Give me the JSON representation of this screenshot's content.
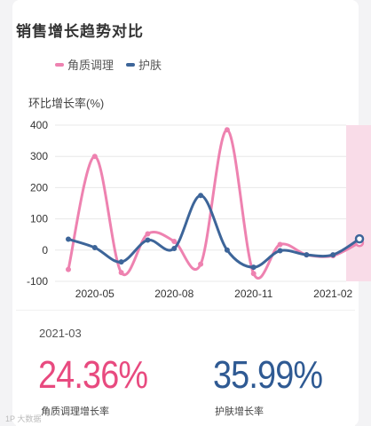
{
  "title": "销售增长趋势对比",
  "legend": [
    {
      "label": "角质调理",
      "color": "#ee82b0"
    },
    {
      "label": "护肤",
      "color": "#3d6599"
    }
  ],
  "ylabel": "环比增长率(%)",
  "summary": {
    "date": "2021-03",
    "value1": "24.36%",
    "label1": "角质调理增长率",
    "value2": "35.99%",
    "label2": "护肤增长率"
  },
  "watermark": "1P 大数据",
  "chart_data": {
    "type": "line",
    "title": "销售增长趋势对比",
    "ylabel": "环比增长率(%)",
    "xlabel": "",
    "x": [
      "2020-04",
      "2020-05",
      "2020-06",
      "2020-07",
      "2020-08",
      "2020-09",
      "2020-10",
      "2020-11",
      "2020-12",
      "2021-01",
      "2021-02",
      "2021-03"
    ],
    "xticks": [
      "2020-05",
      "2020-08",
      "2020-11",
      "2021-02"
    ],
    "yticks": [
      -100,
      0,
      100,
      200,
      300,
      400
    ],
    "ylim": [
      -100,
      400
    ],
    "grid": true,
    "legend_position": "top",
    "highlight_x": "2021-03",
    "series": [
      {
        "name": "角质调理",
        "color": "#ee82b0",
        "values": [
          -62,
          300,
          -72,
          52,
          28,
          -45,
          385,
          -75,
          18,
          -15,
          -18,
          24.36
        ]
      },
      {
        "name": "护肤",
        "color": "#3d6599",
        "values": [
          35,
          8,
          -38,
          32,
          5,
          175,
          0,
          -55,
          -2,
          -15,
          -15,
          35.99
        ]
      }
    ]
  }
}
